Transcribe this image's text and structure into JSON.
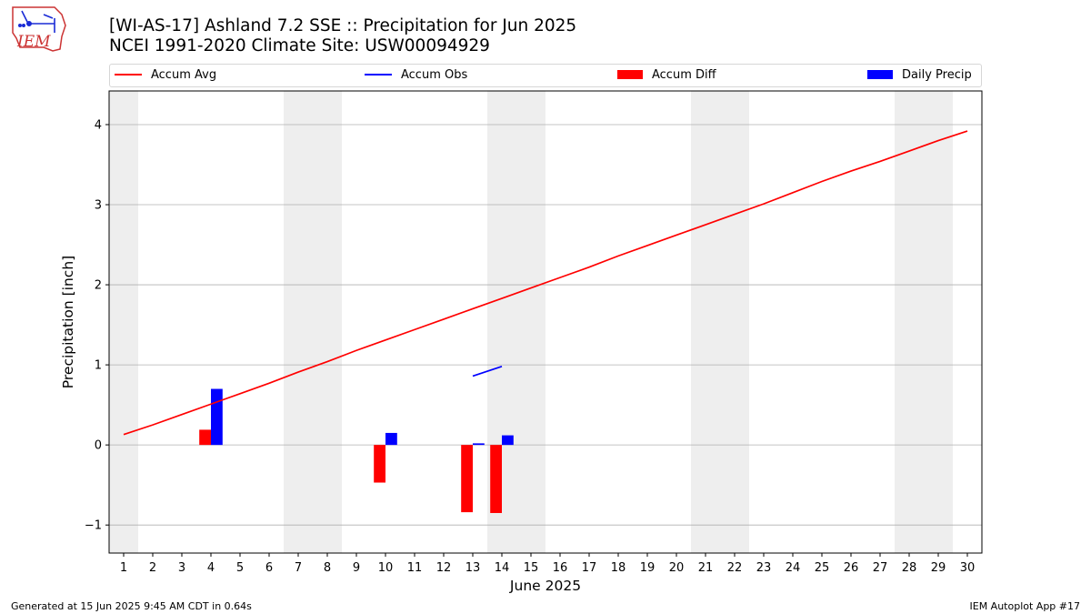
{
  "header": {
    "title_line1": "[WI-AS-17] Ashland 7.2 SSE :: Precipitation for Jun 2025",
    "title_line2": "NCEI 1991-2020 Climate Site: USW00094929",
    "logo_text": "IEM"
  },
  "footer": {
    "left": "Generated at 15 Jun 2025 9:45 AM CDT in 0.64s",
    "right": "IEM Autoplot App #17"
  },
  "colors": {
    "accum_avg": "#ff0000",
    "accum_obs": "#0000ff",
    "accum_diff": "#ff0000",
    "daily_precip": "#0000ff",
    "weekend_shade": "#eeeeee",
    "grid": "#b0b0b0"
  },
  "chart_data": {
    "type": "bar",
    "xlabel": "June 2025",
    "ylabel": "Precipitation [inch]",
    "xlim": [
      0.5,
      30.5
    ],
    "ylim": [
      -1.35,
      4.42
    ],
    "yticks": [
      -1,
      0,
      1,
      2,
      3,
      4
    ],
    "ytick_labels": [
      "−1",
      "0",
      "1",
      "2",
      "3",
      "4"
    ],
    "x": [
      1,
      2,
      3,
      4,
      5,
      6,
      7,
      8,
      9,
      10,
      11,
      12,
      13,
      14,
      15,
      16,
      17,
      18,
      19,
      20,
      21,
      22,
      23,
      24,
      25,
      26,
      27,
      28,
      29,
      30
    ],
    "weekend_days": [
      1,
      7,
      8,
      14,
      15,
      21,
      22,
      28,
      29
    ],
    "grid": "horizontal",
    "legend": {
      "placement": "top",
      "entries": [
        "Accum Avg",
        "Accum Obs",
        "Accum Diff",
        "Daily Precip"
      ]
    },
    "series": [
      {
        "name": "Accum Avg",
        "kind": "line",
        "x": [
          1,
          2,
          3,
          4,
          5,
          6,
          7,
          8,
          9,
          10,
          11,
          12,
          13,
          14,
          15,
          16,
          17,
          18,
          19,
          20,
          21,
          22,
          23,
          24,
          25,
          26,
          27,
          28,
          29,
          30
        ],
        "values": [
          0.13,
          0.25,
          0.38,
          0.51,
          0.64,
          0.77,
          0.91,
          1.04,
          1.18,
          1.31,
          1.44,
          1.57,
          1.7,
          1.83,
          1.96,
          2.09,
          2.22,
          2.36,
          2.49,
          2.62,
          2.75,
          2.88,
          3.01,
          3.15,
          3.29,
          3.42,
          3.54,
          3.67,
          3.8,
          3.92
        ]
      },
      {
        "name": "Accum Obs",
        "kind": "line",
        "x": [
          13,
          14
        ],
        "values": [
          0.86,
          0.98
        ]
      },
      {
        "name": "Accum Diff",
        "kind": "bar",
        "x": [
          4,
          10,
          13,
          14
        ],
        "values": [
          0.19,
          -0.47,
          -0.84,
          -0.85
        ]
      },
      {
        "name": "Daily Precip",
        "kind": "bar",
        "x": [
          4,
          10,
          13,
          14
        ],
        "values": [
          0.7,
          0.15,
          0.02,
          0.12
        ]
      }
    ]
  }
}
